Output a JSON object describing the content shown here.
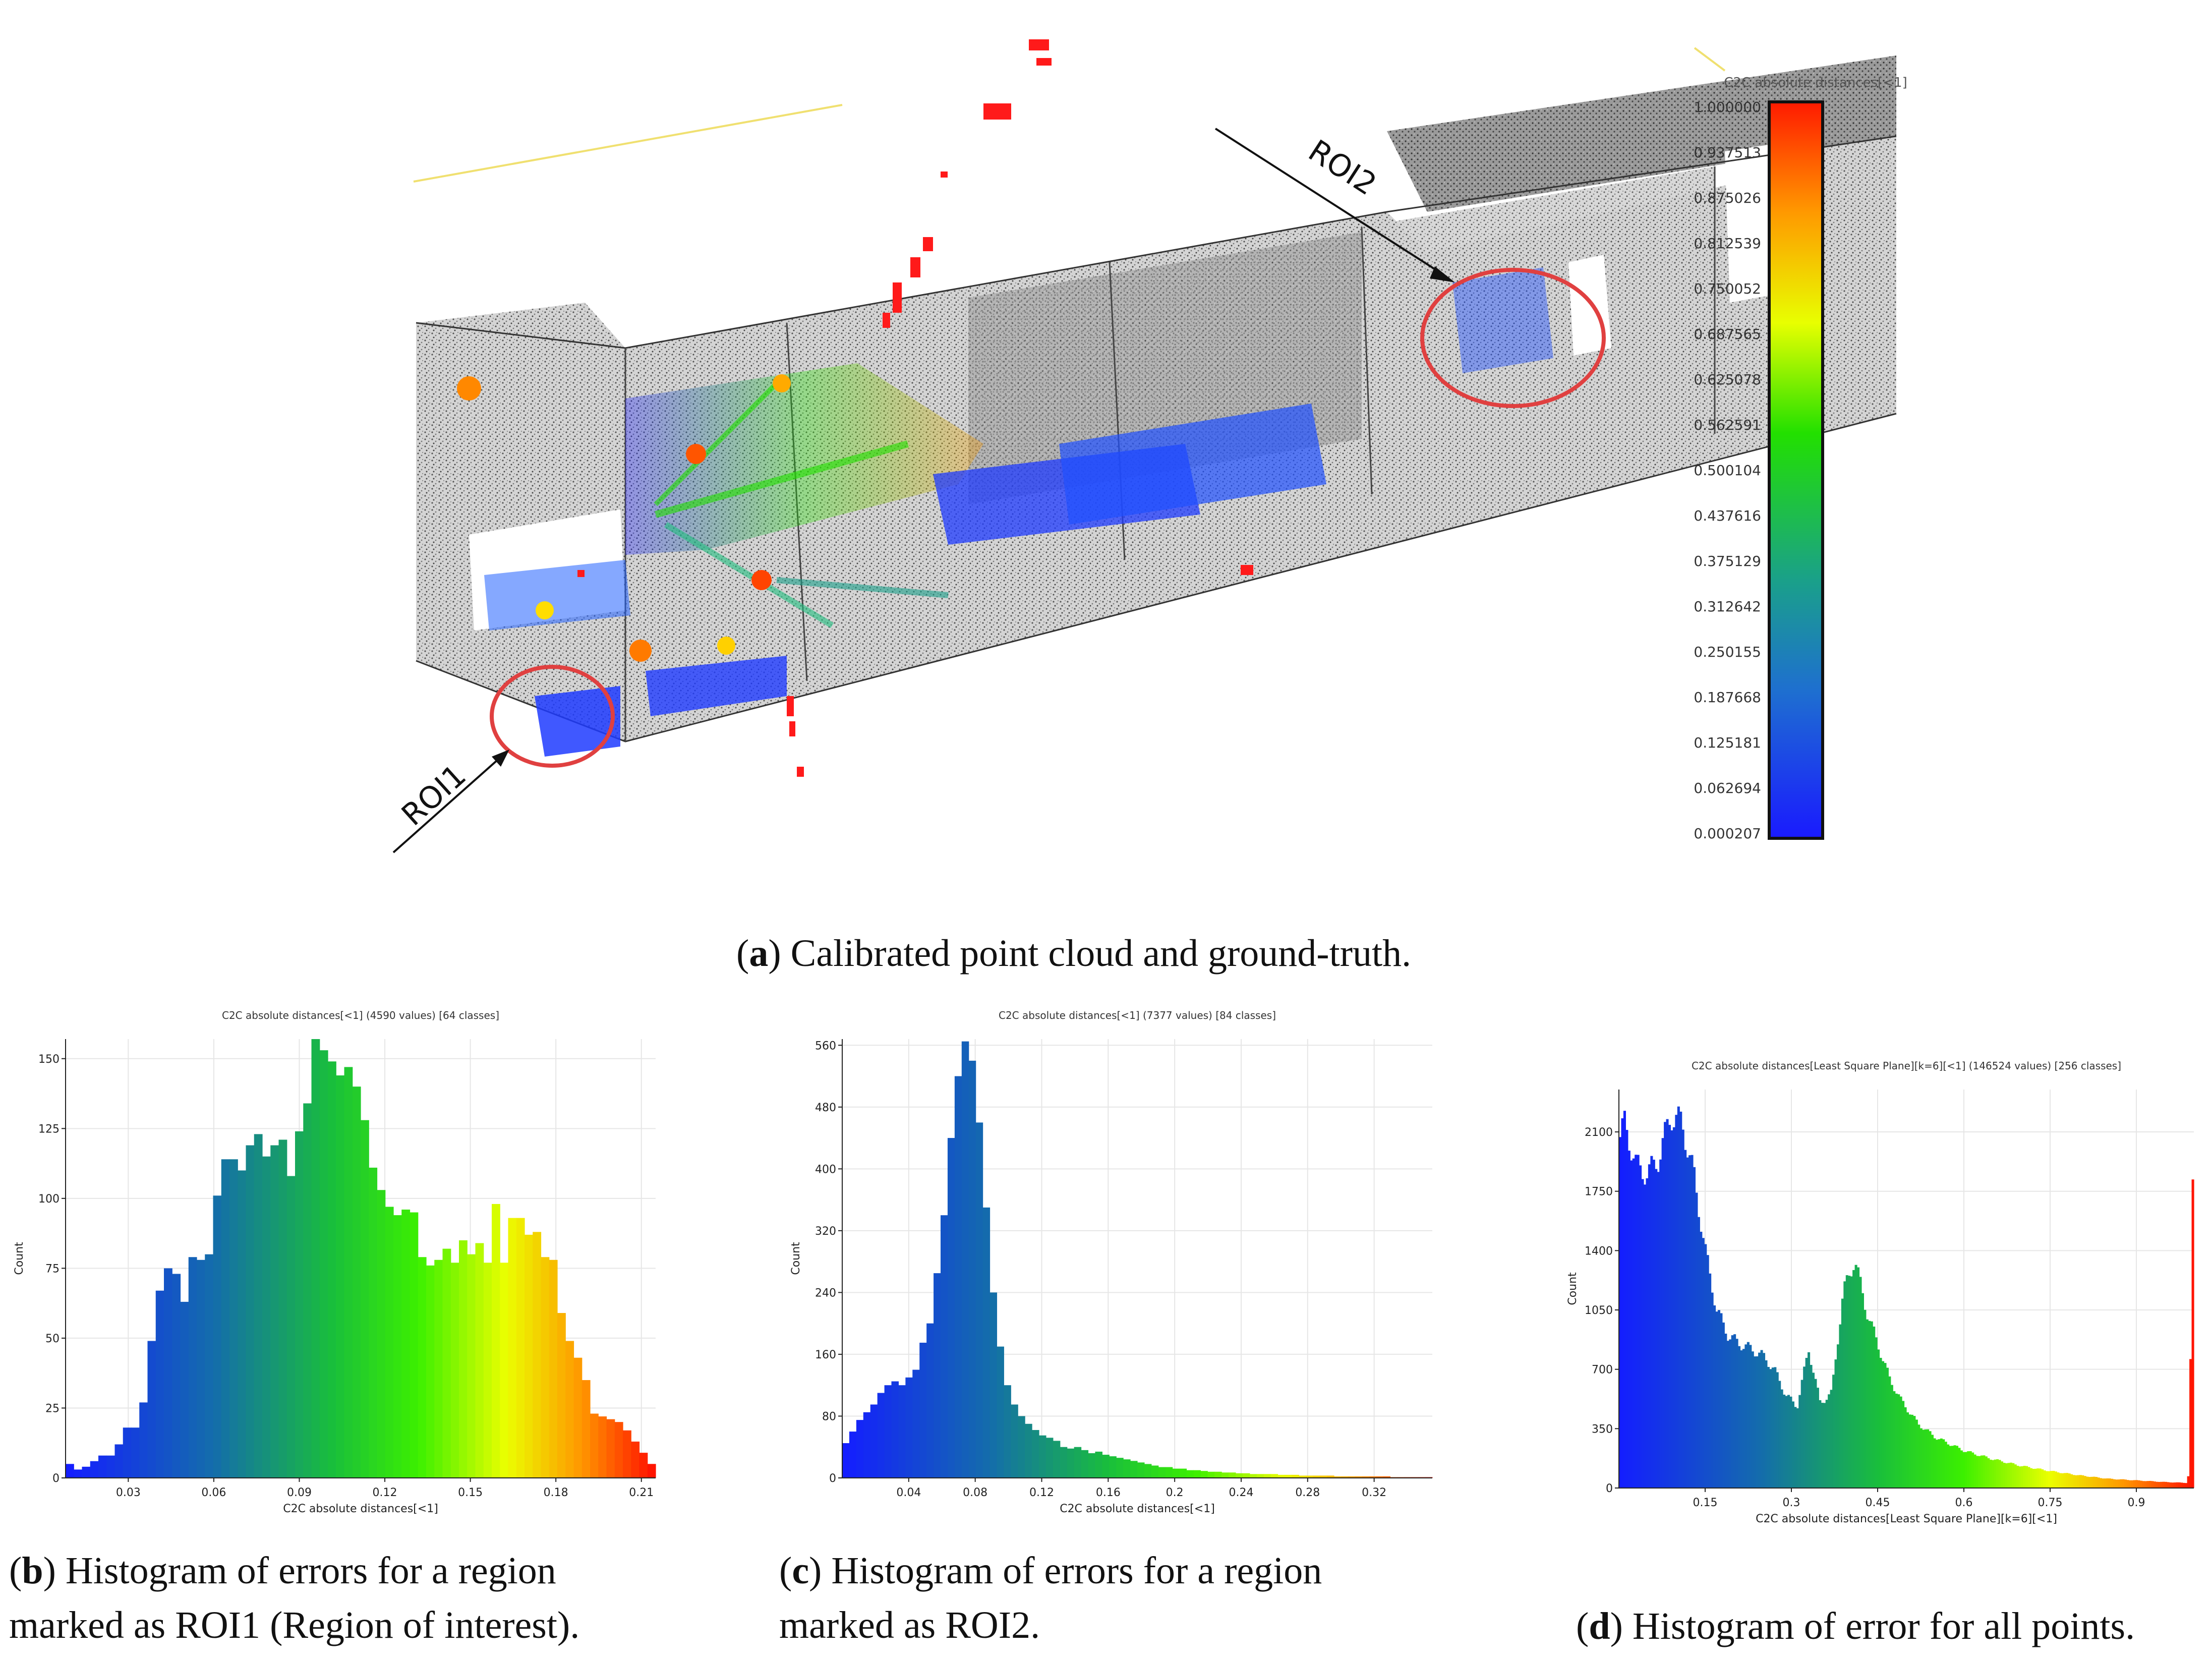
{
  "figure_a": {
    "caption_letter": "a",
    "caption_text": "Calibrated point cloud and ground-truth.",
    "colorbar_title": "C2C absolute distances[<1]",
    "colorbar_ticks": [
      "1.000000",
      "0.937513",
      "0.875026",
      "0.812539",
      "0.750052",
      "0.687565",
      "0.625078",
      "0.562591",
      "0.500104",
      "0.437616",
      "0.375129",
      "0.312642",
      "0.250155",
      "0.187668",
      "0.125181",
      "0.062694",
      "0.000207"
    ],
    "roi1_label": "ROI1",
    "roi2_label": "ROI2",
    "colors": {
      "roi_circle": "#e04040",
      "low": "#1f3bff",
      "mid": "#22e000",
      "high": "#ff2a00"
    }
  },
  "chart_data": [
    {
      "id": "b",
      "type": "bar",
      "title": "C2C absolute distances[<1] (4590 values)  [64 classes]",
      "xlabel": "C2C absolute distances[<1]",
      "ylabel": "Count",
      "xlim": [
        0.008,
        0.215
      ],
      "ylim": [
        0,
        157
      ],
      "xticks": [
        0.03,
        0.06,
        0.09,
        0.12,
        0.15,
        0.18,
        0.21
      ],
      "xtick_labels": [
        "0.03",
        "0.06",
        "0.09",
        "0.12",
        "0.15",
        "0.18",
        "0.21"
      ],
      "yticks": [
        0,
        25,
        50,
        75,
        100,
        125,
        150
      ],
      "ytick_labels": [
        "0",
        "25",
        "50",
        "75",
        "100",
        "125",
        "150"
      ],
      "values": [
        5,
        3,
        4,
        6,
        8,
        8,
        12,
        18,
        18,
        27,
        49,
        67,
        75,
        73,
        63,
        79,
        78,
        80,
        101,
        114,
        114,
        110,
        119,
        123,
        115,
        119,
        121,
        108,
        124,
        134,
        157,
        153,
        149,
        144,
        147,
        140,
        128,
        111,
        103,
        97,
        94,
        96,
        95,
        79,
        76,
        78,
        82,
        77,
        85,
        80,
        84,
        77,
        98,
        77,
        93,
        93,
        87,
        88,
        79,
        78,
        59,
        49,
        43,
        35
      ],
      "bar_tail": [
        23,
        22,
        21,
        20,
        17,
        13,
        9,
        5
      ],
      "caption_letter": "b",
      "caption_text_1": "Histogram of errors for a region",
      "caption_text_2": "marked as ROI1 (Region of interest)."
    },
    {
      "id": "c",
      "type": "bar",
      "title": "C2C absolute distances[<1] (7377 values)  [84 classes]",
      "xlabel": "C2C absolute distances[<1]",
      "ylabel": "Count",
      "xlim": [
        0.0,
        0.355
      ],
      "ylim": [
        0,
        568
      ],
      "xticks": [
        0.04,
        0.08,
        0.12,
        0.16,
        0.2,
        0.24,
        0.28,
        0.32
      ],
      "xtick_labels": [
        "0.04",
        "0.08",
        "0.12",
        "0.16",
        "0.2",
        "0.24",
        "0.28",
        "0.32"
      ],
      "yticks": [
        0,
        80,
        160,
        240,
        320,
        400,
        480,
        560
      ],
      "ytick_labels": [
        "0",
        "80",
        "160",
        "240",
        "320",
        "400",
        "480",
        "560"
      ],
      "values": [
        45,
        60,
        75,
        85,
        95,
        110,
        120,
        125,
        120,
        130,
        140,
        175,
        200,
        265,
        340,
        440,
        520,
        565,
        540,
        460,
        350,
        240,
        170,
        120,
        95,
        80,
        70,
        62,
        55,
        52,
        48,
        40,
        38,
        40,
        36,
        32,
        34,
        30,
        28,
        26,
        24,
        22,
        20,
        18,
        16,
        14,
        14,
        12,
        12,
        10,
        10,
        9,
        8,
        8,
        7,
        7,
        6,
        6,
        5,
        5,
        5,
        5,
        4,
        4,
        4,
        3,
        3,
        3,
        3,
        3,
        2,
        2,
        2,
        2,
        2,
        2,
        2,
        2,
        1,
        1,
        1,
        1,
        1,
        1
      ],
      "caption_letter": "c",
      "caption_text_1": "Histogram of errors for a region",
      "caption_text_2": "marked as ROI2."
    },
    {
      "id": "d",
      "type": "bar",
      "title": "C2C absolute distances[Least Square Plane][k=6][<1] (146524 values)  [256 classes]",
      "xlabel": "C2C absolute distances[Least Square Plane][k=6][<1]",
      "ylabel": "Count",
      "xlim": [
        0.0,
        1.0
      ],
      "ylim": [
        0,
        2350
      ],
      "xticks": [
        0.15,
        0.3,
        0.45,
        0.6,
        0.75,
        0.9
      ],
      "xtick_labels": [
        "0.15",
        "0.3",
        "0.45",
        "0.6",
        "0.75",
        "0.9"
      ],
      "yticks": [
        0,
        350,
        700,
        1050,
        1400,
        1750,
        2100
      ],
      "ytick_labels": [
        "0",
        "350",
        "700",
        "1050",
        "1400",
        "1750",
        "2100"
      ],
      "profile": [
        [
          0.0,
          2050
        ],
        [
          0.01,
          2150
        ],
        [
          0.03,
          1900
        ],
        [
          0.05,
          1850
        ],
        [
          0.07,
          1950
        ],
        [
          0.09,
          2200
        ],
        [
          0.11,
          2150
        ],
        [
          0.13,
          1850
        ],
        [
          0.15,
          1400
        ],
        [
          0.17,
          1050
        ],
        [
          0.19,
          900
        ],
        [
          0.21,
          850
        ],
        [
          0.23,
          820
        ],
        [
          0.25,
          780
        ],
        [
          0.27,
          700
        ],
        [
          0.29,
          550
        ],
        [
          0.31,
          480
        ],
        [
          0.33,
          820
        ],
        [
          0.35,
          500
        ],
        [
          0.37,
          560
        ],
        [
          0.39,
          1150
        ],
        [
          0.41,
          1350
        ],
        [
          0.43,
          1050
        ],
        [
          0.45,
          850
        ],
        [
          0.47,
          650
        ],
        [
          0.49,
          520
        ],
        [
          0.52,
          380
        ],
        [
          0.55,
          300
        ],
        [
          0.6,
          220
        ],
        [
          0.65,
          170
        ],
        [
          0.7,
          130
        ],
        [
          0.75,
          100
        ],
        [
          0.8,
          75
        ],
        [
          0.85,
          55
        ],
        [
          0.9,
          45
        ],
        [
          0.95,
          35
        ],
        [
          0.99,
          30
        ],
        [
          1.0,
          1750
        ]
      ],
      "caption_letter": "d",
      "caption_text_1": "Histogram of error for all points."
    }
  ]
}
